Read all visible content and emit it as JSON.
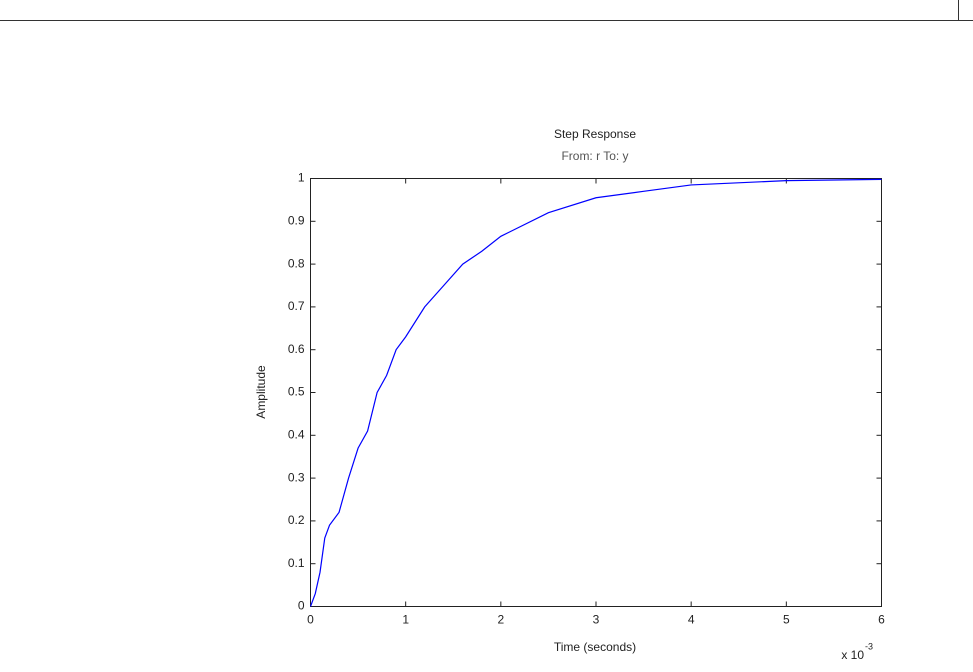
{
  "chart_data": {
    "type": "line",
    "title": "Step Response",
    "subtitle": "From: r  To: y",
    "x_label": "Time (seconds)",
    "y_label": "Amplitude",
    "x_multiplier": {
      "base": "x 10",
      "exponent": "-3"
    },
    "x": [
      0,
      0.05,
      0.1,
      0.15,
      0.2,
      0.3,
      0.4,
      0.5,
      0.6,
      0.7,
      0.8,
      0.9,
      1.0,
      1.2,
      1.4,
      1.6,
      1.8,
      2.0,
      2.5,
      3.0,
      3.5,
      4.0,
      5.0,
      6.0
    ],
    "series": [
      {
        "name": "r to y",
        "color": "#0000ff",
        "values": [
          0,
          0.03,
          0.08,
          0.16,
          0.19,
          0.22,
          0.3,
          0.37,
          0.41,
          0.5,
          0.54,
          0.6,
          0.63,
          0.7,
          0.75,
          0.8,
          0.83,
          0.865,
          0.92,
          0.955,
          0.97,
          0.985,
          0.995,
          0.998
        ]
      }
    ],
    "xlim": [
      0,
      6
    ],
    "ylim": [
      0,
      1
    ],
    "xticks": [
      0,
      1,
      2,
      3,
      4,
      5,
      6
    ],
    "yticks": [
      0,
      0.1,
      0.2,
      0.3,
      0.4,
      0.5,
      0.6,
      0.7,
      0.8,
      0.9,
      1
    ],
    "grid": false
  }
}
